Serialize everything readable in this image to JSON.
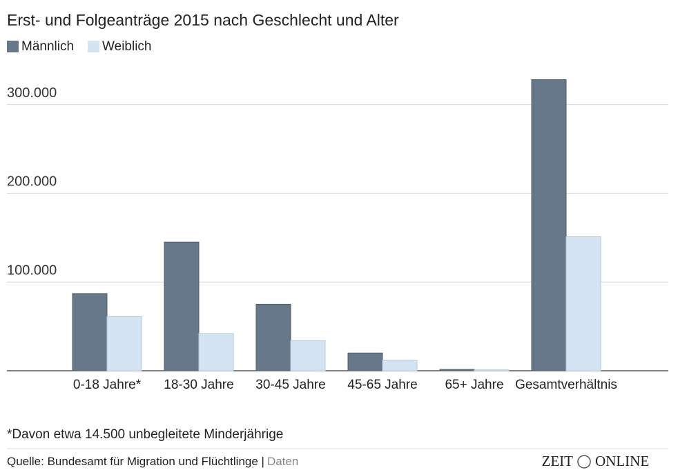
{
  "chart_data": {
    "type": "bar",
    "title": "Erst- und Folgeanträge 2015 nach Geschlecht und Alter",
    "categories": [
      "0-18 Jahre*",
      "18-30 Jahre",
      "30-45 Jahre",
      "45-65 Jahre",
      "65+ Jahre",
      "Gesamtverhältnis"
    ],
    "series": [
      {
        "name": "Männlich",
        "color": "#67788a",
        "values": [
          87000,
          145000,
          75000,
          20000,
          1500,
          328000
        ]
      },
      {
        "name": "Weiblich",
        "color": "#d4e4f3",
        "values": [
          61000,
          42000,
          34000,
          12000,
          1000,
          151000
        ]
      }
    ],
    "ylim": [
      0,
      330000
    ],
    "yticks": [
      {
        "value": 100000,
        "label": "100.000"
      },
      {
        "value": 200000,
        "label": "200.000"
      },
      {
        "value": 300000,
        "label": "300.000"
      }
    ],
    "grid": true,
    "legend": "top-left",
    "footnote": "*Davon etwa 14.500 unbegleitete Minderjährige",
    "source": "Quelle: Bundesamt für Migration und Flüchtlinge |",
    "source_link": "Daten",
    "logo_left": "ZEIT",
    "logo_right": "ONLINE"
  }
}
